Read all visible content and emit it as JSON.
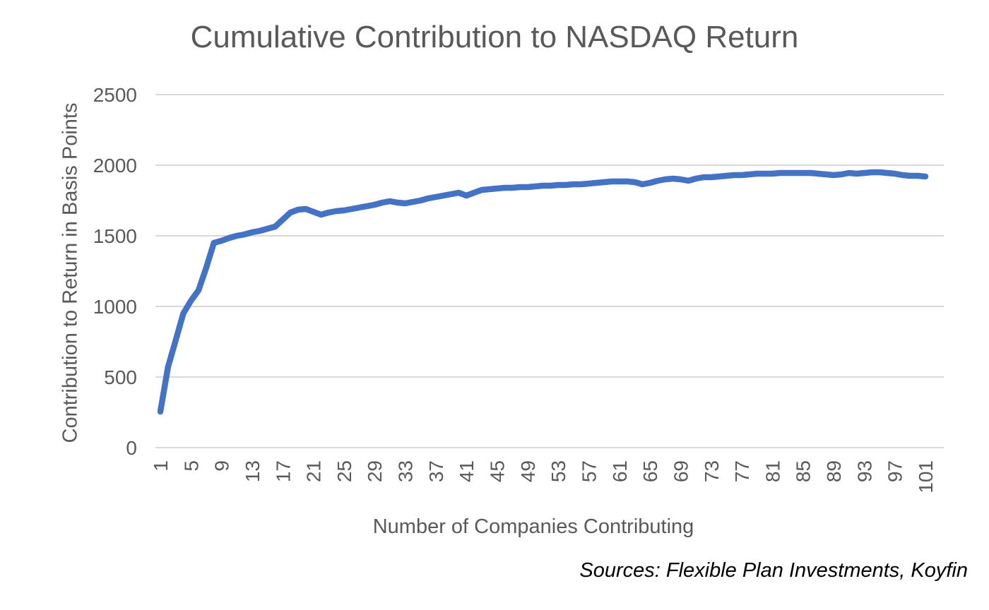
{
  "title": "Cumulative Contribution to NASDAQ Return",
  "source_note": "Sources: Flexible Plan Investments, Koyfin",
  "colors": {
    "line": "#4472C4",
    "text_gray": "#595959",
    "gridline": "#D9D9D9",
    "source_text": "#000000",
    "background": "#FFFFFF"
  },
  "chart_data": {
    "type": "line",
    "title": "Cumulative Contribution to NASDAQ Return",
    "xlabel": "Number of Companies Contributing",
    "ylabel": "Contribution to Return in Basis Points",
    "xlim": [
      1,
      101
    ],
    "ylim": [
      0,
      2500
    ],
    "x_ticks": [
      1,
      5,
      9,
      13,
      17,
      21,
      25,
      29,
      33,
      37,
      41,
      45,
      49,
      53,
      57,
      61,
      65,
      69,
      73,
      77,
      81,
      85,
      89,
      93,
      97,
      101
    ],
    "y_ticks": [
      0,
      500,
      1000,
      1500,
      2000,
      2500
    ],
    "grid": "horizontal-only",
    "legend": "none",
    "line_color": "#4472C4",
    "series": [
      {
        "name": "Cumulative contribution to NASDAQ return (basis points)",
        "x": [
          1,
          2,
          3,
          4,
          5,
          6,
          7,
          8,
          9,
          10,
          11,
          12,
          13,
          14,
          15,
          16,
          17,
          18,
          19,
          20,
          21,
          22,
          23,
          24,
          25,
          26,
          27,
          28,
          29,
          30,
          31,
          32,
          33,
          34,
          35,
          36,
          37,
          38,
          39,
          40,
          41,
          42,
          43,
          44,
          45,
          46,
          47,
          48,
          49,
          50,
          51,
          52,
          53,
          54,
          55,
          56,
          57,
          58,
          59,
          60,
          61,
          62,
          63,
          64,
          65,
          66,
          67,
          68,
          69,
          70,
          71,
          72,
          73,
          74,
          75,
          76,
          77,
          78,
          79,
          80,
          81,
          82,
          83,
          84,
          85,
          86,
          87,
          88,
          89,
          90,
          91,
          92,
          93,
          94,
          95,
          96,
          97,
          98,
          99,
          100,
          101
        ],
        "values": [
          255,
          570,
          760,
          950,
          1040,
          1115,
          1275,
          1450,
          1465,
          1485,
          1500,
          1510,
          1525,
          1535,
          1550,
          1565,
          1615,
          1665,
          1685,
          1690,
          1670,
          1650,
          1665,
          1675,
          1680,
          1690,
          1700,
          1710,
          1720,
          1735,
          1745,
          1735,
          1730,
          1740,
          1750,
          1765,
          1775,
          1785,
          1795,
          1805,
          1785,
          1805,
          1825,
          1830,
          1835,
          1840,
          1840,
          1845,
          1845,
          1850,
          1855,
          1855,
          1860,
          1860,
          1865,
          1865,
          1870,
          1875,
          1880,
          1885,
          1885,
          1885,
          1880,
          1865,
          1875,
          1890,
          1900,
          1905,
          1900,
          1890,
          1905,
          1915,
          1915,
          1920,
          1925,
          1930,
          1930,
          1935,
          1940,
          1940,
          1940,
          1945,
          1945,
          1945,
          1945,
          1945,
          1940,
          1935,
          1930,
          1935,
          1945,
          1940,
          1945,
          1950,
          1950,
          1945,
          1940,
          1930,
          1925,
          1925,
          1920
        ]
      }
    ]
  }
}
